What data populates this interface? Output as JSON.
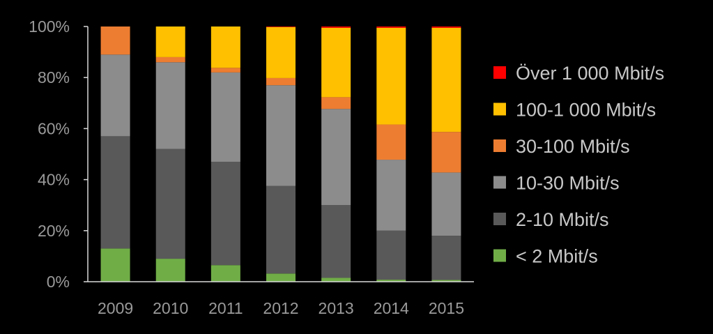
{
  "chart_data": {
    "type": "bar",
    "stacked": true,
    "percent": true,
    "categories": [
      "2009",
      "2010",
      "2011",
      "2012",
      "2013",
      "2014",
      "2015"
    ],
    "series": [
      {
        "name": "< 2 Mbit/s",
        "color": "#70ad47",
        "values": [
          13,
          9,
          6.5,
          3.2,
          1.5,
          0.8,
          0.7
        ]
      },
      {
        "name": "2-10 Mbit/s",
        "color": "#595959",
        "values": [
          44,
          43,
          40.5,
          34.3,
          28.5,
          19.2,
          17.3
        ]
      },
      {
        "name": "10-30 Mbit/s",
        "color": "#8c8c8c",
        "values": [
          32,
          34,
          35,
          39.5,
          37.7,
          27.8,
          24.8
        ]
      },
      {
        "name": "30-100 Mbit/s",
        "color": "#ed7d31",
        "values": [
          11,
          2,
          1.8,
          2.8,
          4.6,
          13.8,
          15.9
        ]
      },
      {
        "name": "100-1 000 Mbit/s",
        "color": "#ffc000",
        "values": [
          0,
          12,
          16.2,
          20,
          27.2,
          37.9,
          40.8
        ]
      },
      {
        "name": "Över 1 000 Mbit/s",
        "color": "#ff0000",
        "values": [
          0,
          0,
          0,
          0.2,
          0.5,
          0.5,
          0.5
        ]
      }
    ],
    "yticks": [
      "0%",
      "20%",
      "40%",
      "60%",
      "80%",
      "100%"
    ],
    "ylim": [
      0,
      100
    ],
    "axis_color": "#d9d9d9",
    "background": "#000000",
    "legend_position": "right",
    "legend_order": [
      "Över 1 000 Mbit/s",
      "100-1 000 Mbit/s",
      "30-100 Mbit/s",
      "10-30 Mbit/s",
      "2-10 Mbit/s",
      "< 2 Mbit/s"
    ]
  }
}
